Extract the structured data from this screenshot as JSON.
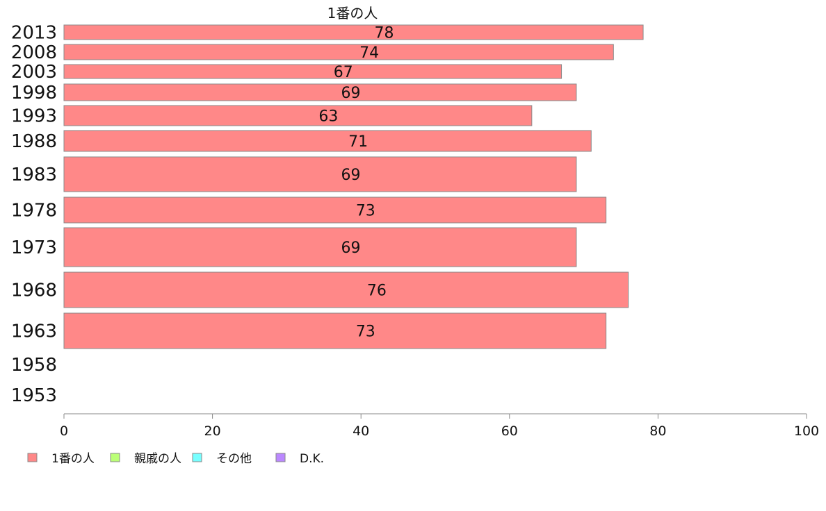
{
  "chart_data": {
    "type": "bar",
    "orientation": "horizontal",
    "stacked": true,
    "column_title": "1番の人",
    "categories": [
      "2013",
      "2008",
      "2003",
      "1998",
      "1993",
      "1988",
      "1983",
      "1978",
      "1973",
      "1968",
      "1963",
      "1958",
      "1953"
    ],
    "series": [
      {
        "name": "1番の人",
        "color": "#ff8888",
        "values": [
          78,
          74,
          67,
          69,
          63,
          71,
          69,
          73,
          69,
          76,
          73,
          null,
          null
        ],
        "data_labels": [
          "78",
          "74",
          "67",
          "69",
          "63",
          "71",
          "69",
          "73",
          "69",
          "76",
          "73",
          "",
          ""
        ]
      },
      {
        "name": "親戚の人",
        "color": "#bbff77",
        "values": [
          null,
          null,
          null,
          null,
          null,
          null,
          null,
          null,
          null,
          null,
          null,
          null,
          null
        ]
      },
      {
        "name": "その他",
        "color": "#77ffff",
        "values": [
          null,
          null,
          null,
          null,
          null,
          null,
          null,
          null,
          null,
          null,
          null,
          null,
          null
        ]
      },
      {
        "name": "D.K.",
        "color": "#bb88ff",
        "values": [
          null,
          null,
          null,
          null,
          null,
          null,
          null,
          null,
          null,
          null,
          null,
          null,
          null
        ]
      }
    ],
    "x_ticks": [
      "0",
      "20",
      "40",
      "60",
      "80",
      "100"
    ],
    "xlim": [
      0,
      100
    ],
    "grid": false,
    "legend_position": "bottom-left"
  }
}
